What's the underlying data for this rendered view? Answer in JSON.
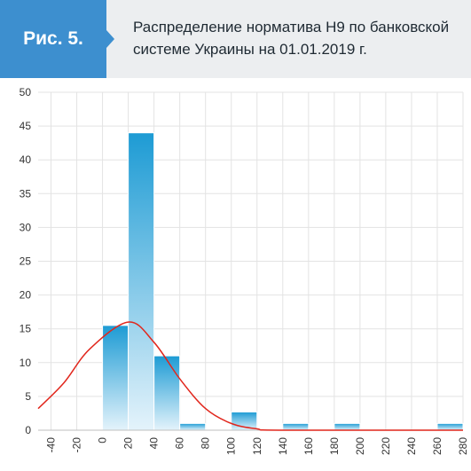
{
  "figure": {
    "label": "Рис. 5.",
    "title_line1": "Распределение норматива Н9 по банковской",
    "title_line2": "системе Украины на 01.01.2019 г."
  },
  "colors": {
    "badge": "#3d8fcf",
    "header_bg": "#eceef0",
    "bar_top": "#1d9bd4",
    "bar_bottom": "#e4f3fb",
    "curve": "#e1261c",
    "grid": "#e3e3e3"
  },
  "chart_data": {
    "type": "bar",
    "title": "",
    "xlabel": "",
    "ylabel": "",
    "ylim": [
      0,
      50
    ],
    "yticks": [
      0,
      5,
      10,
      15,
      20,
      25,
      30,
      35,
      40,
      45,
      50
    ],
    "xlim": [
      -50,
      280
    ],
    "xticks": [
      "-40",
      "-20",
      "0",
      "20",
      "40",
      "60",
      "80",
      "100",
      "120",
      "140",
      "160",
      "180",
      "200",
      "220",
      "240",
      "260",
      "280"
    ],
    "grid": true,
    "legend": "none",
    "bin_width": 20,
    "bars": [
      {
        "x_start": 0,
        "x_end": 20,
        "value": 15.5
      },
      {
        "x_start": 20,
        "x_end": 40,
        "value": 44
      },
      {
        "x_start": 40,
        "x_end": 60,
        "value": 11
      },
      {
        "x_start": 60,
        "x_end": 80,
        "value": 1
      },
      {
        "x_start": 100,
        "x_end": 120,
        "value": 2.7
      },
      {
        "x_start": 140,
        "x_end": 160,
        "value": 1
      },
      {
        "x_start": 180,
        "x_end": 200,
        "value": 1
      },
      {
        "x_start": 260,
        "x_end": 280,
        "value": 1
      }
    ],
    "curve": {
      "type": "normal",
      "points": [
        [
          -50,
          3.2
        ],
        [
          -30,
          7.0
        ],
        [
          -10,
          12.0
        ],
        [
          20,
          16.0
        ],
        [
          40,
          13.0
        ],
        [
          60,
          7.6
        ],
        [
          80,
          3.2
        ],
        [
          100,
          1.0
        ],
        [
          120,
          0.2
        ],
        [
          140,
          0.0
        ],
        [
          280,
          0.0
        ]
      ]
    }
  }
}
